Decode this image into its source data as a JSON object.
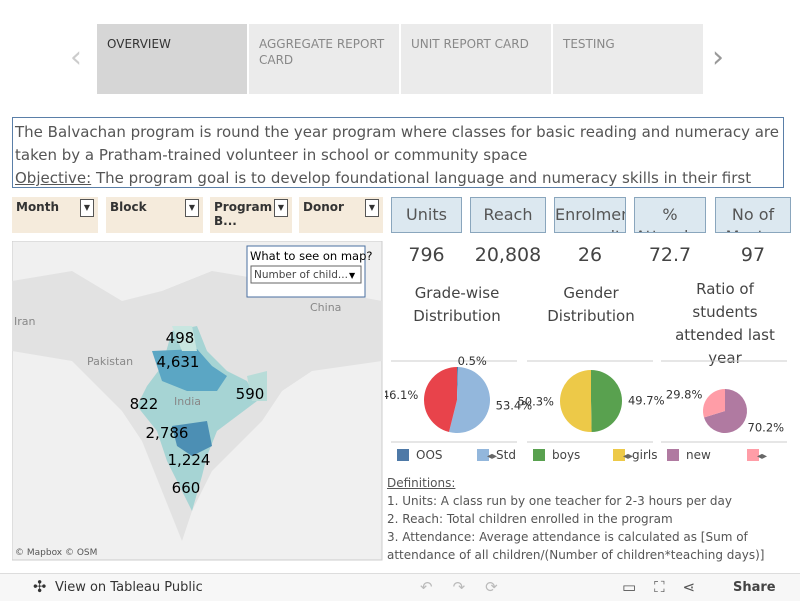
{
  "nav": {
    "tabs": [
      "OVERVIEW",
      "AGGREGATE REPORT CARD",
      "UNIT REPORT CARD",
      "TESTING"
    ]
  },
  "description": {
    "lines": [
      "The Balvachan program is round the year program where classes for basic reading and numeracy are",
      "taken by a Pratham-trained volunteer in school or community space"
    ],
    "objective_label": "Objective:",
    "objective_text": " The program goal is to develop foundational language and numeracy skills in their first two"
  },
  "filters": [
    "Month",
    "Block",
    "Program B...",
    "Donor"
  ],
  "kpis": [
    {
      "label": "Units",
      "value": "796"
    },
    {
      "label": "Reach",
      "value": "20,808"
    },
    {
      "label": "Enrolment per unit",
      "value": "26"
    },
    {
      "label": "% Attendance",
      "value": "72.7"
    },
    {
      "label": "No of Master",
      "value": "97"
    }
  ],
  "map": {
    "control_title": "What to see on map?",
    "control_value": "Number of child...",
    "places": [
      "Iran",
      "Pakistan",
      "India",
      "China"
    ],
    "labels": [
      "498",
      "4,631",
      "822",
      "590",
      "2,786",
      "1,224",
      "660"
    ],
    "credits": "© Mapbox  © OSM"
  },
  "chart_data": [
    {
      "type": "pie",
      "title": [
        "Grade-wise",
        "Distribution"
      ],
      "values": [
        0.5,
        53.4,
        46.1
      ],
      "value_labels": [
        "0.5%",
        "53.4%",
        "46.1%"
      ],
      "colors": [
        "#4e79a7",
        "#93b7dc",
        "#e8434b"
      ],
      "legend": [
        {
          "label": "OOS",
          "color": "#4e79a7"
        },
        {
          "label": "Std",
          "color": "#93b7dc"
        }
      ]
    },
    {
      "type": "pie",
      "title": [
        "Gender",
        "Distribution"
      ],
      "values": [
        49.7,
        50.3
      ],
      "value_labels": [
        "49.7%",
        "50.3%"
      ],
      "colors": [
        "#59a14f",
        "#edc948"
      ],
      "legend": [
        {
          "label": "boys",
          "color": "#59a14f"
        },
        {
          "label": "girls",
          "color": "#edc948"
        }
      ]
    },
    {
      "type": "pie",
      "title": [
        "Ratio of",
        "students",
        "attended last",
        "year"
      ],
      "values": [
        70.2,
        29.8
      ],
      "value_labels": [
        "70.2%",
        "29.8%"
      ],
      "colors": [
        "#b07aa1",
        "#ff9da7"
      ],
      "legend": [
        {
          "label": "new",
          "color": "#b07aa1"
        },
        {
          "color": "#ff9da7"
        }
      ]
    }
  ],
  "definitions": {
    "title": "Definitions:",
    "lines": [
      "1. Units: A class run by one teacher for 2-3 hours per day",
      "2. Reach: Total children enrolled in the program",
      "3. Attendance: Average attendance is calculated as [Sum of",
      "attendance of all children/(Number of children*teaching days)]"
    ]
  },
  "toolbar": {
    "view": "View on Tableau Public",
    "share": "Share"
  }
}
